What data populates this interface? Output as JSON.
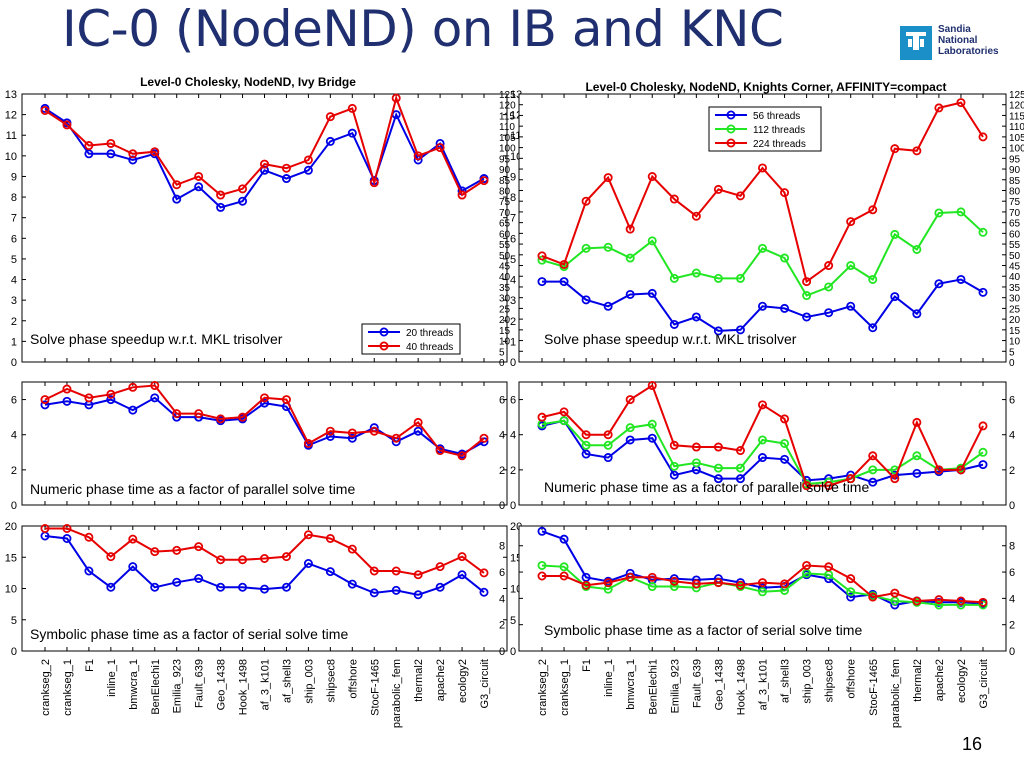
{
  "slide": {
    "title": "IC-0 (NodeND) on IB and KNC",
    "page_number": "16",
    "logo_text": [
      "Sandia",
      "National",
      "Laboratories"
    ]
  },
  "colors": {
    "blue": "#0000e6",
    "red": "#e60000",
    "green": "#22e622",
    "title": "#1f2f6f"
  },
  "chart_data": {
    "type": "line",
    "categories": [
      "crankseg_2",
      "crankseg_1",
      "F1",
      "inline_1",
      "bmwcra_1",
      "BenElechi1",
      "Emilia_923",
      "Fault_639",
      "Geo_1438",
      "Hook_1498",
      "af_3_k101",
      "af_shell3",
      "ship_003",
      "shipsec8",
      "offshore",
      "StocF-1465",
      "parabolic_fem",
      "thermal2",
      "apache2",
      "ecology2",
      "G3_circuit"
    ],
    "charts": [
      {
        "id": "ib-solve",
        "title": "Level-0 Cholesky, NodeND, Ivy Bridge",
        "annotation": "Solve phase speedup w.r.t. MKL trisolver",
        "ylim": [
          0,
          13
        ],
        "yticks": [
          0,
          1,
          2,
          3,
          4,
          5,
          6,
          7,
          8,
          9,
          10,
          11,
          12,
          13
        ],
        "legend": "bottom-right",
        "series": [
          {
            "name": "20 threads",
            "color": "blue",
            "values": [
              12.3,
              11.6,
              10.1,
              10.1,
              9.8,
              10.1,
              7.9,
              8.5,
              7.5,
              7.8,
              9.3,
              8.9,
              9.3,
              10.7,
              11.1,
              8.8,
              12.0,
              9.8,
              10.6,
              8.3,
              8.9
            ]
          },
          {
            "name": "40 threads",
            "color": "red",
            "values": [
              12.2,
              11.5,
              10.5,
              10.6,
              10.1,
              10.2,
              8.6,
              9.0,
              8.1,
              8.4,
              9.6,
              9.4,
              9.8,
              11.9,
              12.3,
              8.7,
              12.8,
              10.0,
              10.4,
              8.1,
              8.8
            ]
          }
        ]
      },
      {
        "id": "knc-solve",
        "title": "Level-0 Cholesky, NodeND, Knights Corner, AFFINITY=compact",
        "annotation": "Solve phase speedup w.r.t. MKL trisolver",
        "ylim": [
          0,
          125
        ],
        "yticks": [
          0,
          5,
          10,
          15,
          20,
          25,
          30,
          35,
          40,
          45,
          50,
          55,
          60,
          65,
          70,
          75,
          80,
          85,
          90,
          95,
          100,
          105,
          110,
          115,
          120,
          125
        ],
        "legend": "top-center",
        "series": [
          {
            "name": "56 threads",
            "color": "blue",
            "values": [
              37.5,
              37.5,
              29,
              26,
              31.5,
              32,
              17.5,
              21,
              14.5,
              15,
              26,
              25,
              21,
              23,
              26,
              16,
              30.5,
              22.5,
              36.5,
              38.5,
              32.5
            ]
          },
          {
            "name": "112 threads",
            "color": "green",
            "values": [
              47.5,
              44.5,
              53,
              53.5,
              48.5,
              56.5,
              39,
              41.5,
              39,
              39,
              53,
              48.5,
              31,
              35,
              45,
              38.5,
              59.5,
              52.5,
              69.5,
              70,
              60.5
            ]
          },
          {
            "name": "224 threads",
            "color": "red",
            "values": [
              49.5,
              45.5,
              75,
              86,
              62,
              86.5,
              76,
              68,
              80.5,
              77.5,
              90.5,
              79,
              37.5,
              45,
              65.5,
              71,
              99.5,
              98.5,
              118.5,
              121,
              105
            ]
          }
        ]
      },
      {
        "id": "ib-numeric",
        "annotation": "Numeric phase time as a factor of parallel solve time",
        "ylim": [
          0,
          7
        ],
        "yticks": [
          0,
          2,
          4,
          6
        ],
        "series": [
          {
            "name": "20 threads",
            "color": "blue",
            "values": [
              5.7,
              5.9,
              5.7,
              6.0,
              5.4,
              6.1,
              5.0,
              5.0,
              4.8,
              4.9,
              5.8,
              5.6,
              3.4,
              3.9,
              3.8,
              4.4,
              3.6,
              4.2,
              3.2,
              2.9,
              3.6
            ]
          },
          {
            "name": "40 threads",
            "color": "red",
            "values": [
              6.0,
              6.6,
              6.1,
              6.3,
              6.7,
              6.8,
              5.2,
              5.2,
              4.9,
              5.0,
              6.1,
              6.0,
              3.5,
              4.2,
              4.1,
              4.2,
              3.8,
              4.7,
              3.1,
              2.8,
              3.8
            ]
          }
        ]
      },
      {
        "id": "knc-numeric",
        "annotation": "Numeric phase time as a factor of parallel solve time",
        "ylim": [
          0,
          7
        ],
        "yticks": [
          0,
          2,
          4,
          6
        ],
        "series": [
          {
            "name": "56 threads",
            "color": "blue",
            "values": [
              4.5,
              4.8,
              2.9,
              2.7,
              3.7,
              3.8,
              1.7,
              2.0,
              1.5,
              1.5,
              2.7,
              2.6,
              1.4,
              1.5,
              1.7,
              1.3,
              1.7,
              1.8,
              1.9,
              2.0,
              2.3
            ]
          },
          {
            "name": "112 threads",
            "color": "green",
            "values": [
              4.6,
              4.8,
              3.4,
              3.4,
              4.4,
              4.6,
              2.2,
              2.4,
              2.1,
              2.1,
              3.7,
              3.5,
              1.2,
              1.3,
              1.5,
              2.0,
              2.0,
              2.8,
              2.0,
              2.1,
              3.0
            ]
          },
          {
            "name": "224 threads",
            "color": "red",
            "values": [
              5.0,
              5.3,
              4.0,
              4.0,
              6.0,
              6.8,
              3.4,
              3.3,
              3.3,
              3.1,
              5.7,
              4.9,
              1.1,
              1.1,
              1.5,
              2.8,
              1.5,
              4.7,
              2.0,
              2.0,
              4.5
            ]
          }
        ]
      },
      {
        "id": "ib-symbolic",
        "annotation": "Symbolic phase time as a factor of serial solve time",
        "ylim": [
          0,
          20
        ],
        "yticks": [
          0,
          5,
          10,
          15,
          20
        ],
        "series": [
          {
            "name": "20 threads",
            "color": "blue",
            "values": [
              18.4,
              18.0,
              12.8,
              10.2,
              13.5,
              10.2,
              11.0,
              11.6,
              10.2,
              10.2,
              9.9,
              10.2,
              14.0,
              12.7,
              10.7,
              9.3,
              9.7,
              9.0,
              10.2,
              12.2,
              9.4
            ]
          },
          {
            "name": "40 threads",
            "color": "red",
            "values": [
              19.6,
              19.6,
              18.2,
              15.1,
              17.9,
              15.9,
              16.1,
              16.7,
              14.6,
              14.6,
              14.8,
              15.1,
              18.6,
              18.0,
              16.3,
              12.8,
              12.8,
              12.2,
              13.5,
              15.1,
              12.5
            ]
          }
        ]
      },
      {
        "id": "knc-symbolic",
        "annotation": "Symbolic phase time as a factor of serial solve time",
        "ylim": [
          0,
          9.5
        ],
        "yticks": [
          0,
          2,
          4,
          6,
          8
        ],
        "series": [
          {
            "name": "56 threads",
            "color": "blue",
            "values": [
              9.1,
              8.5,
              5.6,
              5.3,
              5.9,
              5.4,
              5.5,
              5.4,
              5.5,
              5.2,
              4.8,
              4.9,
              5.8,
              5.5,
              4.1,
              4.3,
              3.5,
              3.8,
              3.7,
              3.7,
              3.6
            ]
          },
          {
            "name": "112 threads",
            "color": "green",
            "values": [
              6.5,
              6.4,
              4.9,
              4.7,
              5.6,
              4.9,
              4.9,
              4.8,
              5.2,
              4.9,
              4.5,
              4.6,
              5.9,
              5.8,
              4.5,
              4.2,
              3.8,
              3.7,
              3.5,
              3.5,
              3.5
            ]
          },
          {
            "name": "224 threads",
            "color": "red",
            "values": [
              5.7,
              5.7,
              5.0,
              5.2,
              5.6,
              5.6,
              5.3,
              5.1,
              5.2,
              5.0,
              5.2,
              5.1,
              6.5,
              6.4,
              5.5,
              4.1,
              4.4,
              3.8,
              3.9,
              3.8,
              3.7
            ]
          }
        ]
      }
    ]
  }
}
